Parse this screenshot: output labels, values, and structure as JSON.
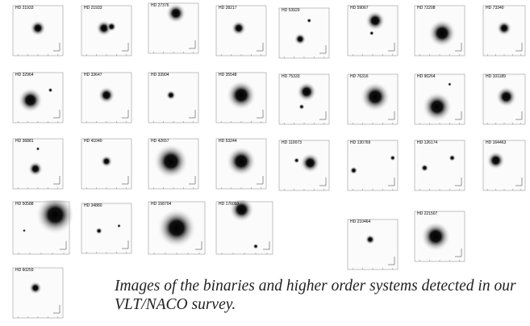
{
  "panels": [
    {
      "label": "HD 21933"
    },
    {
      "label": "HD 21933"
    },
    {
      "label": "HD 27376"
    },
    {
      "label": "HD 28217"
    },
    {
      "label": "HD 53929"
    },
    {
      "label": "HD 59067"
    },
    {
      "label": "HD 72208"
    },
    {
      "label": "HD 73340"
    },
    {
      "label": "HD 32964"
    },
    {
      "label": "HD 33647"
    },
    {
      "label": "HD 33904"
    },
    {
      "label": "HD 35548"
    },
    {
      "label": "HD 75333"
    },
    {
      "label": "HD 76316"
    },
    {
      "label": "HD 90264"
    },
    {
      "label": "HD 101189"
    },
    {
      "label": "HD 36881"
    },
    {
      "label": "HD 41040"
    },
    {
      "label": "HD 42657"
    },
    {
      "label": "HD 53244"
    },
    {
      "label": "HD 110073"
    },
    {
      "label": "HD 130769"
    },
    {
      "label": "HD 126174"
    },
    {
      "label": "HD 164463"
    },
    {
      "label": "HD 50588"
    },
    {
      "label": "HD 34880"
    },
    {
      "label": "HD 158704"
    },
    {
      "label": "HD 176093"
    },
    {
      "label": "HD 210464"
    },
    {
      "label": "HD 221507"
    },
    {
      "label": "HD 60259"
    }
  ],
  "caption": "Images of the binaries and higher order systems detected in our VLT/NACO survey."
}
